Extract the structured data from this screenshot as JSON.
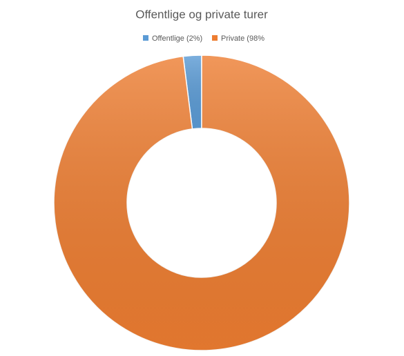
{
  "chart_data": {
    "type": "donut",
    "title": "Offentlige og private turer",
    "categories": [
      "Offentlige (2%)",
      "Private (98%"
    ],
    "values": [
      2,
      98
    ],
    "colors": [
      "#5b9bd5",
      "#ed7d31"
    ],
    "legend": "top"
  }
}
